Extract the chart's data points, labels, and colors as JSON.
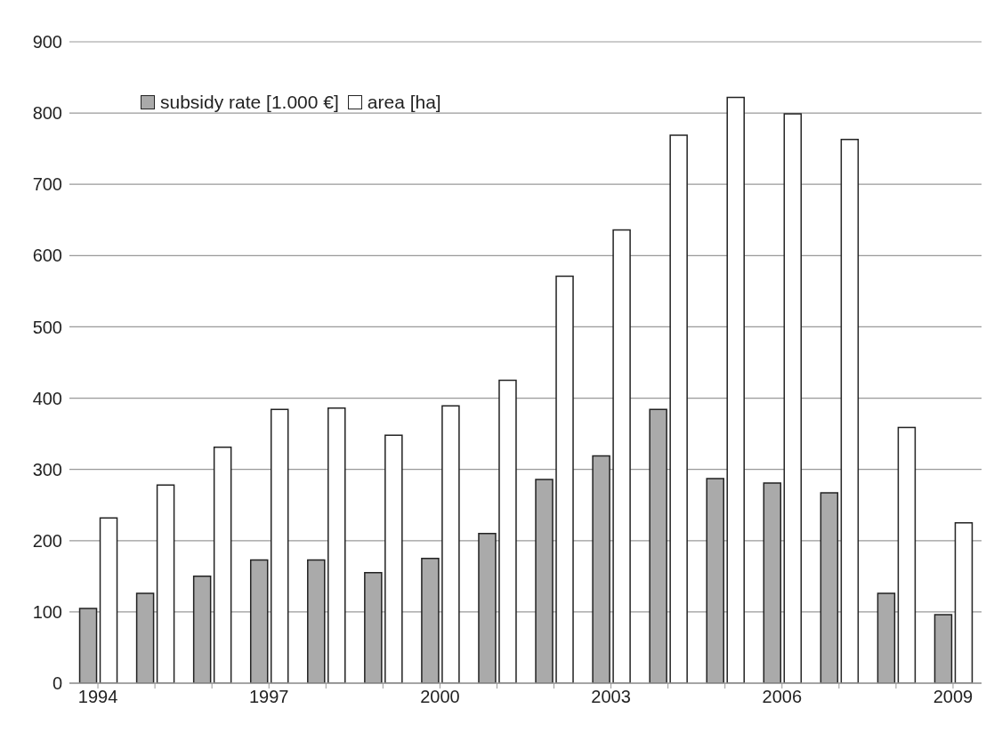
{
  "chart_data": {
    "type": "bar",
    "categories": [
      "1994",
      null,
      null,
      "1997",
      null,
      null,
      "2000",
      null,
      null,
      "2003",
      null,
      null,
      "2006",
      null,
      null,
      "2009"
    ],
    "series": [
      {
        "name": "subsidy rate [1.000 €]",
        "color": "#aaaaaa",
        "values": [
          105,
          126,
          150,
          173,
          173,
          155,
          175,
          210,
          286,
          319,
          384,
          287,
          281,
          267,
          126,
          96
        ]
      },
      {
        "name": "area [ha]",
        "color": "#ffffff",
        "values": [
          232,
          278,
          331,
          384,
          386,
          348,
          389,
          425,
          571,
          636,
          769,
          822,
          799,
          763,
          359,
          225
        ]
      }
    ],
    "ylim": [
      0,
      900
    ],
    "yticks": [
      0,
      100,
      200,
      300,
      400,
      500,
      600,
      700,
      800,
      900
    ],
    "grid": "y",
    "legend": "top left"
  }
}
